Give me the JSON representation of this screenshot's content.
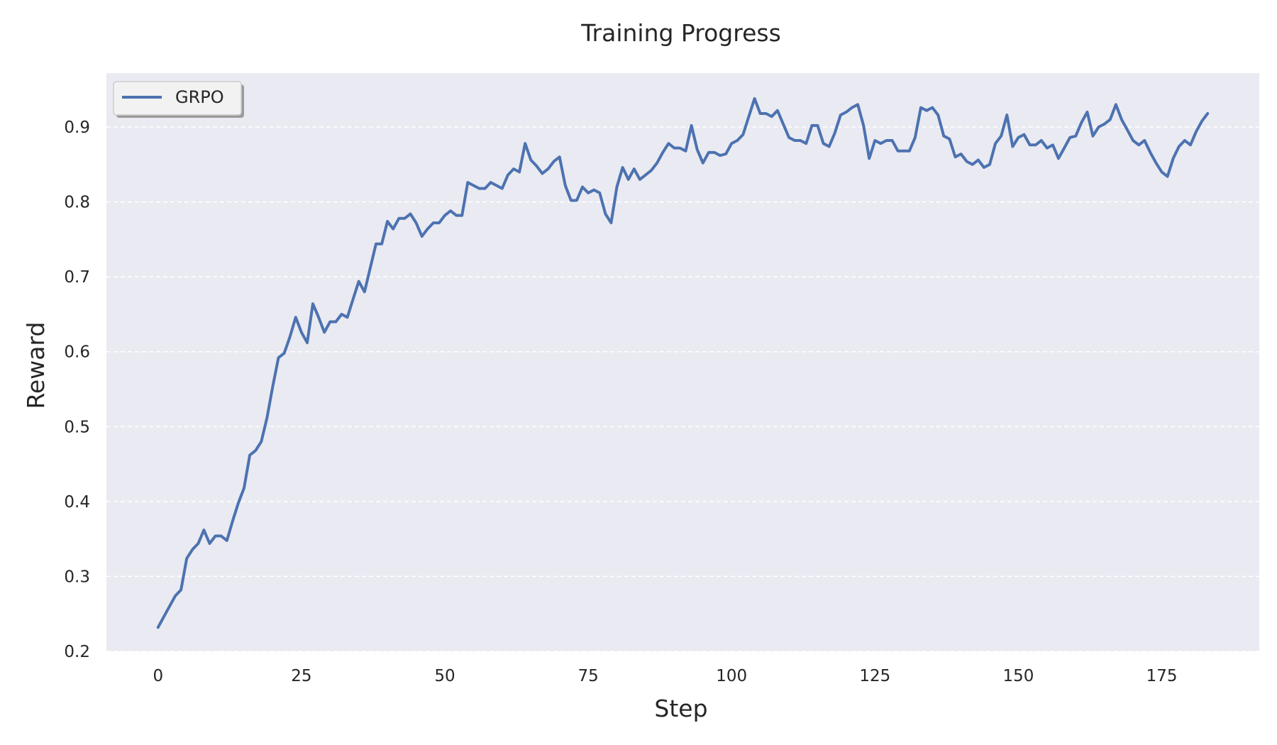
{
  "chart_data": {
    "type": "line",
    "title": "Training Progress",
    "xlabel": "Step",
    "ylabel": "Reward",
    "xlim": [
      -9,
      192
    ],
    "ylim": [
      0.2,
      0.972
    ],
    "xticks": [
      0,
      25,
      50,
      75,
      100,
      125,
      150,
      175
    ],
    "yticks": [
      0.2,
      0.3,
      0.4,
      0.5,
      0.6,
      0.7,
      0.8,
      0.9
    ],
    "grid": "horizontal-dashed",
    "legend_position": "top-left",
    "background": "#eaeaf2",
    "series": [
      {
        "name": "GRPO",
        "color": "#4c72b0",
        "x": [
          0,
          1,
          2,
          3,
          4,
          5,
          6,
          7,
          8,
          9,
          10,
          11,
          12,
          13,
          14,
          15,
          16,
          17,
          18,
          19,
          20,
          21,
          22,
          23,
          24,
          25,
          26,
          27,
          28,
          29,
          30,
          31,
          32,
          33,
          34,
          35,
          36,
          37,
          38,
          39,
          40,
          41,
          42,
          43,
          44,
          45,
          46,
          47,
          48,
          49,
          50,
          51,
          52,
          53,
          54,
          55,
          56,
          57,
          58,
          59,
          60,
          61,
          62,
          63,
          64,
          65,
          66,
          67,
          68,
          69,
          70,
          71,
          72,
          73,
          74,
          75,
          76,
          77,
          78,
          79,
          80,
          81,
          82,
          83,
          84,
          85,
          86,
          87,
          88,
          89,
          90,
          91,
          92,
          93,
          94,
          95,
          96,
          97,
          98,
          99,
          100,
          101,
          102,
          103,
          104,
          105,
          106,
          107,
          108,
          109,
          110,
          111,
          112,
          113,
          114,
          115,
          116,
          117,
          118,
          119,
          120,
          121,
          122,
          123,
          124,
          125,
          126,
          127,
          128,
          129,
          130,
          131,
          132,
          133,
          134,
          135,
          136,
          137,
          138,
          139,
          140,
          141,
          142,
          143,
          144,
          145,
          146,
          147,
          148,
          149,
          150,
          151,
          152,
          153,
          154,
          155,
          156,
          157,
          158,
          159,
          160,
          161,
          162,
          163,
          164,
          165,
          166,
          167,
          168,
          169,
          170,
          171,
          172,
          173,
          174,
          175,
          176,
          177,
          178,
          179,
          180,
          181,
          182,
          183
        ],
        "values": [
          0.232,
          0.246,
          0.26,
          0.274,
          0.282,
          0.324,
          0.336,
          0.344,
          0.362,
          0.344,
          0.354,
          0.354,
          0.348,
          0.374,
          0.398,
          0.418,
          0.462,
          0.468,
          0.48,
          0.512,
          0.554,
          0.592,
          0.598,
          0.62,
          0.646,
          0.626,
          0.612,
          0.664,
          0.646,
          0.626,
          0.64,
          0.64,
          0.65,
          0.646,
          0.67,
          0.694,
          0.68,
          0.712,
          0.744,
          0.744,
          0.774,
          0.764,
          0.778,
          0.778,
          0.784,
          0.772,
          0.754,
          0.764,
          0.772,
          0.772,
          0.782,
          0.788,
          0.782,
          0.782,
          0.826,
          0.822,
          0.818,
          0.818,
          0.826,
          0.822,
          0.818,
          0.836,
          0.844,
          0.84,
          0.878,
          0.856,
          0.848,
          0.838,
          0.844,
          0.854,
          0.86,
          0.822,
          0.802,
          0.802,
          0.82,
          0.812,
          0.816,
          0.812,
          0.784,
          0.772,
          0.82,
          0.846,
          0.83,
          0.844,
          0.83,
          0.836,
          0.842,
          0.852,
          0.866,
          0.878,
          0.872,
          0.872,
          0.868,
          0.902,
          0.87,
          0.852,
          0.866,
          0.866,
          0.862,
          0.864,
          0.878,
          0.882,
          0.89,
          0.914,
          0.938,
          0.918,
          0.918,
          0.914,
          0.922,
          0.904,
          0.886,
          0.882,
          0.882,
          0.878,
          0.902,
          0.902,
          0.878,
          0.874,
          0.892,
          0.916,
          0.92,
          0.926,
          0.93,
          0.902,
          0.858,
          0.882,
          0.878,
          0.882,
          0.882,
          0.868,
          0.868,
          0.868,
          0.886,
          0.926,
          0.922,
          0.926,
          0.916,
          0.888,
          0.884,
          0.86,
          0.864,
          0.854,
          0.85,
          0.856,
          0.846,
          0.85,
          0.878,
          0.888,
          0.916,
          0.874,
          0.886,
          0.89,
          0.876,
          0.876,
          0.882,
          0.872,
          0.876,
          0.858,
          0.872,
          0.886,
          0.888,
          0.906,
          0.92,
          0.888,
          0.9,
          0.904,
          0.91,
          0.93,
          0.91,
          0.896,
          0.882,
          0.876,
          0.882,
          0.866,
          0.852,
          0.84,
          0.834,
          0.858,
          0.874,
          0.882,
          0.876,
          0.894,
          0.908,
          0.918
        ]
      }
    ]
  }
}
